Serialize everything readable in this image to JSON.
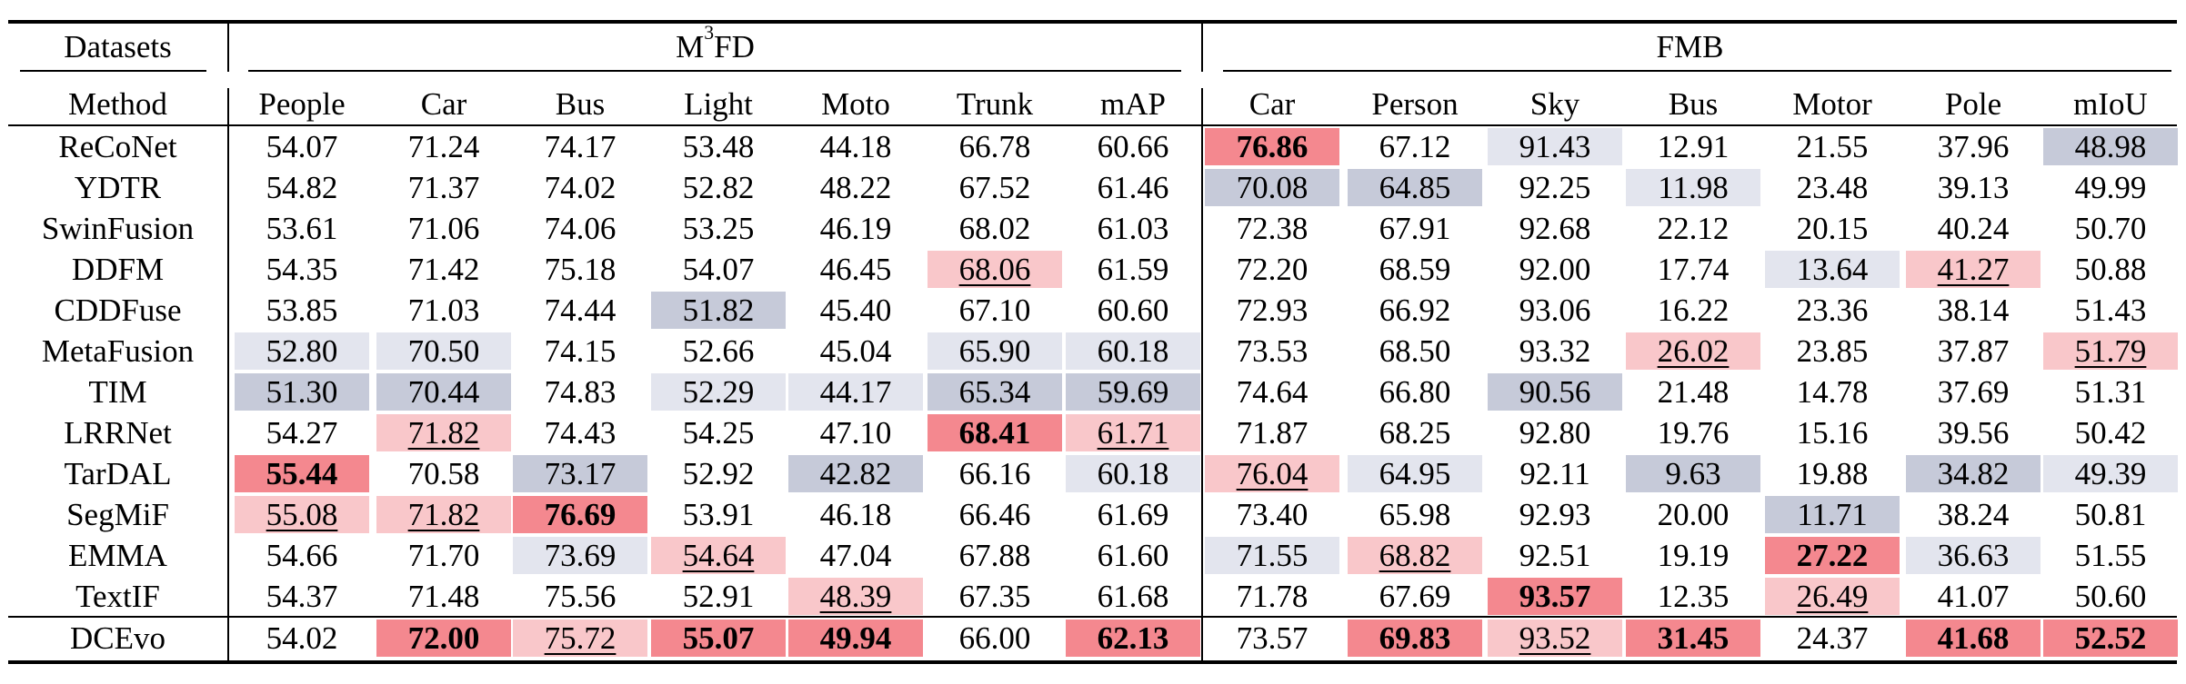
{
  "header": {
    "datasets_label": "Datasets",
    "method_label": "Method",
    "group_a": {
      "base": "M",
      "sup": "3",
      "rest": "FD"
    },
    "group_b": "FMB",
    "columns": [
      "People",
      "Car",
      "Bus",
      "Light",
      "Moto",
      "Trunk",
      "mAP",
      "Car",
      "Person",
      "Sky",
      "Bus",
      "Motor",
      "Pole",
      "mIoU"
    ]
  },
  "legend": {
    "styles": {
      "R": "best (red, bold)",
      "r": "second best (light red, underlined)",
      "B": "worst (dark blue)",
      "b": "second worst (light blue)"
    }
  },
  "colors": {
    "red_strong": "#f4888f",
    "red_light": "#f9c7ca",
    "blue_strong": "#c6cad9",
    "blue_light": "#e3e5ee"
  },
  "rows": [
    {
      "method": "ReCoNet",
      "values": [
        "54.07",
        "71.24",
        "74.17",
        "53.48",
        "44.18",
        "66.78",
        "60.66",
        "76.86",
        "67.12",
        "91.43",
        "12.91",
        "21.55",
        "37.96",
        "48.98"
      ],
      "styles": [
        "",
        "",
        "",
        "",
        "",
        "",
        "",
        "R",
        "",
        "b",
        "",
        "",
        "",
        "B"
      ]
    },
    {
      "method": "YDTR",
      "values": [
        "54.82",
        "71.37",
        "74.02",
        "52.82",
        "48.22",
        "67.52",
        "61.46",
        "70.08",
        "64.85",
        "92.25",
        "11.98",
        "23.48",
        "39.13",
        "49.99"
      ],
      "styles": [
        "",
        "",
        "",
        "",
        "",
        "",
        "",
        "B",
        "B",
        "",
        "b",
        "",
        "",
        ""
      ]
    },
    {
      "method": "SwinFusion",
      "values": [
        "53.61",
        "71.06",
        "74.06",
        "53.25",
        "46.19",
        "68.02",
        "61.03",
        "72.38",
        "67.91",
        "92.68",
        "22.12",
        "20.15",
        "40.24",
        "50.70"
      ],
      "styles": [
        "",
        "",
        "",
        "",
        "",
        "",
        "",
        "",
        "",
        "",
        "",
        "",
        "",
        ""
      ]
    },
    {
      "method": "DDFM",
      "values": [
        "54.35",
        "71.42",
        "75.18",
        "54.07",
        "46.45",
        "68.06",
        "61.59",
        "72.20",
        "68.59",
        "92.00",
        "17.74",
        "13.64",
        "41.27",
        "50.88"
      ],
      "styles": [
        "",
        "",
        "",
        "",
        "",
        "r",
        "",
        "",
        "",
        "",
        "",
        "b",
        "r",
        ""
      ]
    },
    {
      "method": "CDDFuse",
      "values": [
        "53.85",
        "71.03",
        "74.44",
        "51.82",
        "45.40",
        "67.10",
        "60.60",
        "72.93",
        "66.92",
        "93.06",
        "16.22",
        "23.36",
        "38.14",
        "51.43"
      ],
      "styles": [
        "",
        "",
        "",
        "B",
        "",
        "",
        "",
        "",
        "",
        "",
        "",
        "",
        "",
        ""
      ]
    },
    {
      "method": "MetaFusion",
      "values": [
        "52.80",
        "70.50",
        "74.15",
        "52.66",
        "45.04",
        "65.90",
        "60.18",
        "73.53",
        "68.50",
        "93.32",
        "26.02",
        "23.85",
        "37.87",
        "51.79"
      ],
      "styles": [
        "b",
        "b",
        "",
        "",
        "",
        "b",
        "b",
        "",
        "",
        "",
        "r",
        "",
        "",
        "r"
      ]
    },
    {
      "method": "TIM",
      "values": [
        "51.30",
        "70.44",
        "74.83",
        "52.29",
        "44.17",
        "65.34",
        "59.69",
        "74.64",
        "66.80",
        "90.56",
        "21.48",
        "14.78",
        "37.69",
        "51.31"
      ],
      "styles": [
        "B",
        "B",
        "",
        "b",
        "b",
        "B",
        "B",
        "",
        "",
        "B",
        "",
        "",
        "",
        ""
      ]
    },
    {
      "method": "LRRNet",
      "values": [
        "54.27",
        "71.82",
        "74.43",
        "54.25",
        "47.10",
        "68.41",
        "61.71",
        "71.87",
        "68.25",
        "92.80",
        "19.76",
        "15.16",
        "39.56",
        "50.42"
      ],
      "styles": [
        "",
        "r",
        "",
        "",
        "",
        "R",
        "r",
        "",
        "",
        "",
        "",
        "",
        "",
        ""
      ]
    },
    {
      "method": "TarDAL",
      "values": [
        "55.44",
        "70.58",
        "73.17",
        "52.92",
        "42.82",
        "66.16",
        "60.18",
        "76.04",
        "64.95",
        "92.11",
        "9.63",
        "19.88",
        "34.82",
        "49.39"
      ],
      "styles": [
        "R",
        "",
        "B",
        "",
        "B",
        "",
        "b",
        "r",
        "b",
        "",
        "B",
        "",
        "B",
        "b"
      ]
    },
    {
      "method": "SegMiF",
      "values": [
        "55.08",
        "71.82",
        "76.69",
        "53.91",
        "46.18",
        "66.46",
        "61.69",
        "73.40",
        "65.98",
        "92.93",
        "20.00",
        "11.71",
        "38.24",
        "50.81"
      ],
      "styles": [
        "r",
        "r",
        "R",
        "",
        "",
        "",
        "",
        "",
        "",
        "",
        "",
        "B",
        "",
        ""
      ]
    },
    {
      "method": "EMMA",
      "values": [
        "54.66",
        "71.70",
        "73.69",
        "54.64",
        "47.04",
        "67.88",
        "61.60",
        "71.55",
        "68.82",
        "92.51",
        "19.19",
        "27.22",
        "36.63",
        "51.55"
      ],
      "styles": [
        "",
        "",
        "b",
        "r",
        "",
        "",
        "",
        "b",
        "r",
        "",
        "",
        "R",
        "b",
        ""
      ]
    },
    {
      "method": "TextIF",
      "values": [
        "54.37",
        "71.48",
        "75.56",
        "52.91",
        "48.39",
        "67.35",
        "61.68",
        "71.78",
        "67.69",
        "93.57",
        "12.35",
        "26.49",
        "41.07",
        "50.60"
      ],
      "styles": [
        "",
        "",
        "",
        "",
        "r",
        "",
        "",
        "",
        "",
        "R",
        "",
        "r",
        "",
        ""
      ]
    },
    {
      "method": "DCEvo",
      "values": [
        "54.02",
        "72.00",
        "75.72",
        "55.07",
        "49.94",
        "66.00",
        "62.13",
        "73.57",
        "69.83",
        "93.52",
        "31.45",
        "24.37",
        "41.68",
        "52.52"
      ],
      "styles": [
        "",
        "R",
        "r",
        "R",
        "R",
        "",
        "R",
        "",
        "R",
        "r",
        "R",
        "",
        "R",
        "R"
      ]
    }
  ]
}
